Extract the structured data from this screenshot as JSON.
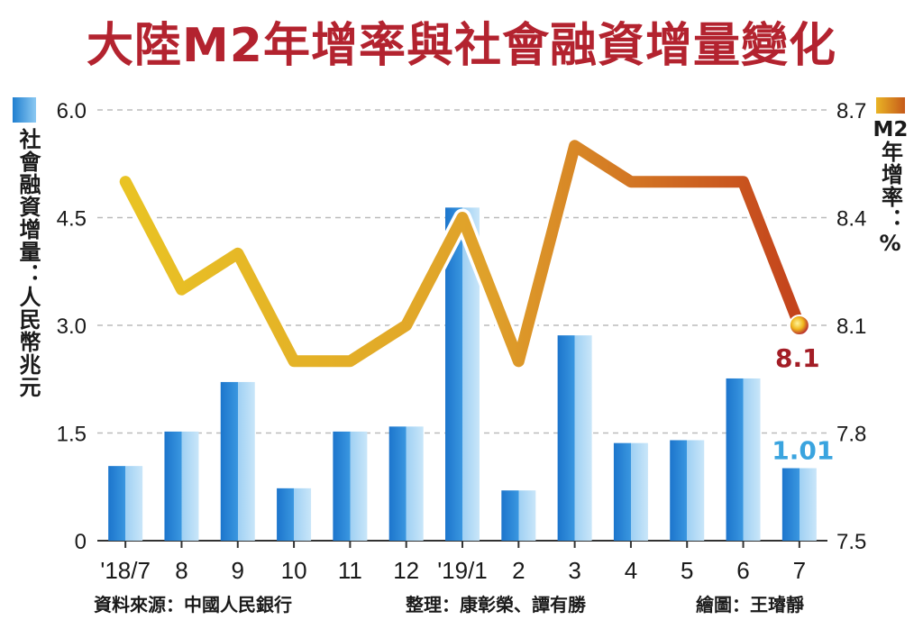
{
  "title": "大陸M2年增率與社會融資增量變化",
  "left_axis_label": "社會融資增量：人民幣兆元",
  "right_axis_label_prefix": "M2",
  "right_axis_label_rest": "年增率：%",
  "footer": {
    "source": "資料來源：中國人民銀行",
    "compiled": "整理：康彰榮、譚有勝",
    "drawn": "繪圖：王璿靜"
  },
  "colors": {
    "title": "#b3232f",
    "bar": "#3a97e0",
    "line_start": "#e9c324",
    "line_end": "#c4441c",
    "last_value_line_label": "#a31d26",
    "last_value_bar_label": "#3aa4df"
  },
  "chart_data": {
    "type": "bar+line",
    "categories": [
      "'18/7",
      "8",
      "9",
      "10",
      "11",
      "12",
      "'19/1",
      "2",
      "3",
      "4",
      "5",
      "6",
      "7"
    ],
    "series": [
      {
        "name": "社會融資增量",
        "type": "bar",
        "axis": "left",
        "values": [
          1.04,
          1.52,
          2.21,
          0.73,
          1.52,
          1.59,
          4.64,
          0.7,
          2.86,
          1.36,
          1.4,
          2.26,
          1.01
        ]
      },
      {
        "name": "M2年增率",
        "type": "line",
        "axis": "right",
        "values": [
          8.5,
          8.2,
          8.3,
          8.0,
          8.0,
          8.1,
          8.4,
          8.0,
          8.6,
          8.5,
          8.5,
          8.5,
          8.1
        ]
      }
    ],
    "left_axis": {
      "ticks": [
        "0",
        "1.5",
        "3.0",
        "4.5",
        "6.0"
      ],
      "range": [
        0,
        6.0
      ]
    },
    "right_axis": {
      "ticks": [
        "7.5",
        "7.8",
        "8.1",
        "8.4",
        "8.7"
      ],
      "range": [
        7.5,
        8.7
      ]
    },
    "annotations": {
      "last_line_label": "8.1",
      "last_bar_label": "1.01"
    },
    "grid": "horizontal dashed"
  }
}
